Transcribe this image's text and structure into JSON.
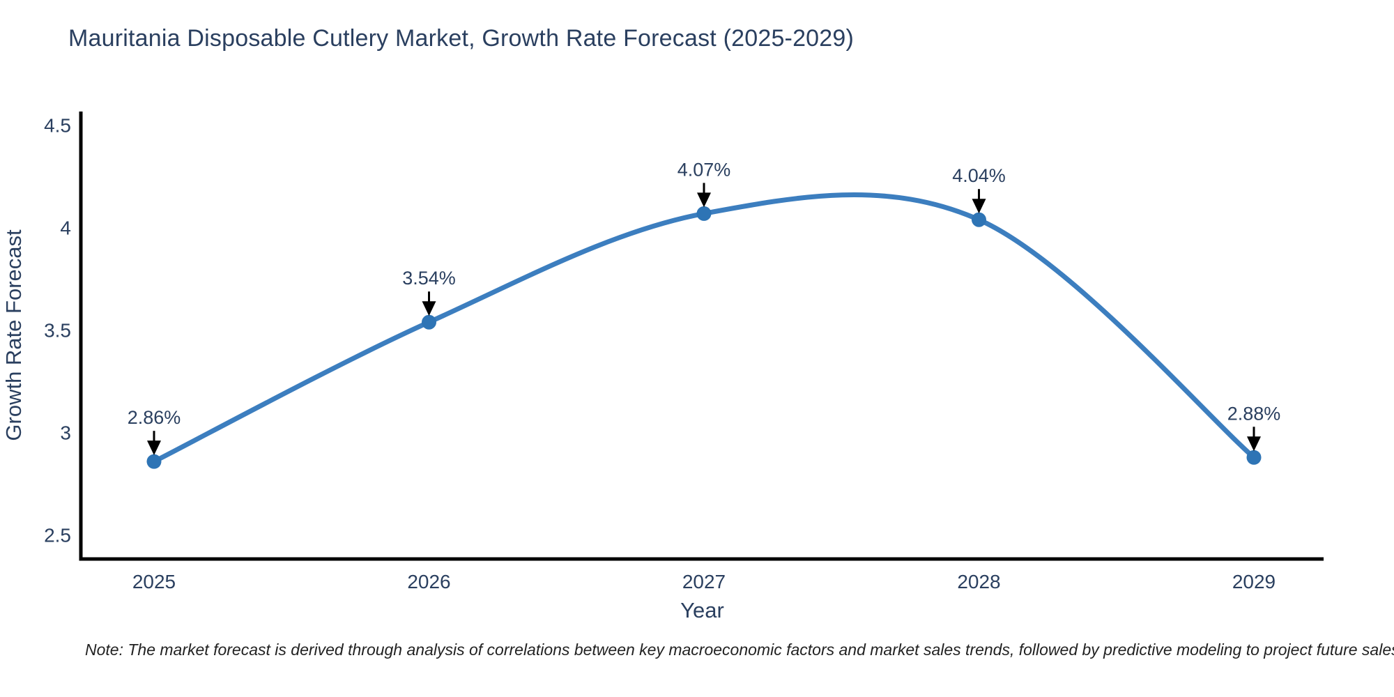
{
  "title": "Mauritania Disposable Cutlery Market, Growth Rate Forecast (2025-2029)",
  "note": "Note: The market forecast is derived through analysis of correlations between key macroeconomic factors and market sales trends, followed by predictive modeling to project future sales",
  "chart_data": {
    "type": "line",
    "line_shape": "spline",
    "title": "Mauritania Disposable Cutlery Market, Growth Rate Forecast (2025-2029)",
    "xlabel": "Year",
    "ylabel": "Growth Rate Forecast",
    "x": [
      2025,
      2026,
      2027,
      2028,
      2029
    ],
    "series": [
      {
        "name": "Growth Rate Forecast",
        "values": [
          2.86,
          3.54,
          4.07,
          4.04,
          2.88
        ],
        "point_labels": [
          "2.86%",
          "3.54%",
          "4.07%",
          "4.04%",
          "2.88%"
        ]
      }
    ],
    "yticks": [
      2.5,
      3,
      3.5,
      4,
      4.5
    ],
    "xticks": [
      "2025",
      "2026",
      "2027",
      "2028",
      "2029"
    ],
    "ylim": [
      2.38,
      4.57
    ],
    "grid": false,
    "legend_position": "none",
    "annotations_style": "value label with downward black arrow onto each marker",
    "colors": {
      "line": "#3c7ebf",
      "marker": "#2e74b5",
      "axis": "#000000",
      "arrow": "#000000",
      "text": "#2a3f5f",
      "note_text": "#222222",
      "background": "#ffffff"
    }
  }
}
